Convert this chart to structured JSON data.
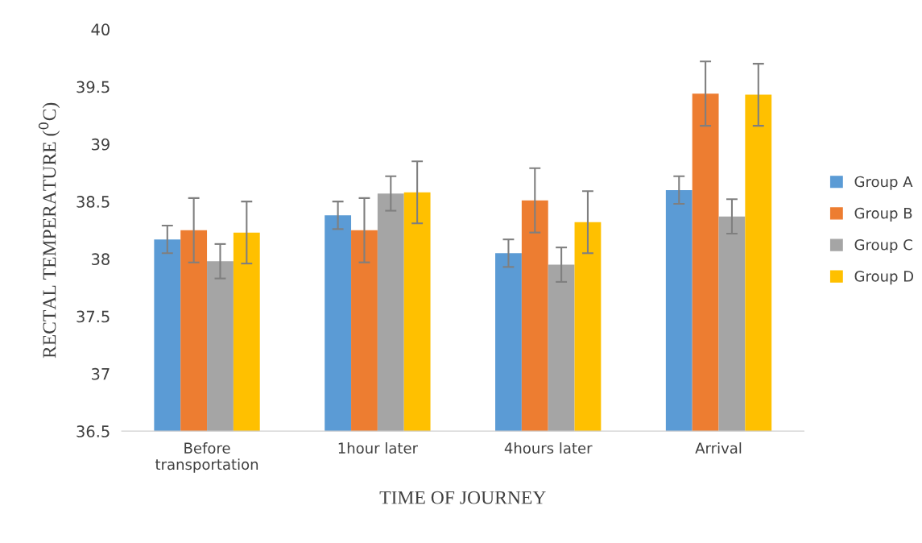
{
  "chart_data": {
    "type": "bar",
    "xlabel": "TIME OF JOURNEY",
    "ylabel": "RECTAL TEMPERATURE ($^{0}$C)",
    "categories": [
      "Before\ntransportation",
      "1hour later",
      "4hours later",
      "Arrival"
    ],
    "series": [
      {
        "name": "Group A",
        "color": "#5b9bd5",
        "values": [
          38.17,
          38.38,
          38.05,
          38.6
        ],
        "errors": [
          0.12,
          0.12,
          0.12,
          0.12
        ]
      },
      {
        "name": "Group B",
        "color": "#ed7d31",
        "values": [
          38.25,
          38.25,
          38.51,
          39.44
        ],
        "errors": [
          0.28,
          0.28,
          0.28,
          0.28
        ]
      },
      {
        "name": "Group C",
        "color": "#a5a5a5",
        "values": [
          37.98,
          38.57,
          37.95,
          38.37
        ],
        "errors": [
          0.15,
          0.15,
          0.15,
          0.15
        ]
      },
      {
        "name": "Group D",
        "color": "#ffc000",
        "values": [
          38.23,
          38.58,
          38.32,
          39.43
        ],
        "errors": [
          0.27,
          0.27,
          0.27,
          0.27
        ]
      }
    ],
    "ylim": [
      36.5,
      40
    ],
    "yticks": [
      36.5,
      37,
      37.5,
      38,
      38.5,
      39,
      39.5,
      40
    ],
    "grid": false,
    "legend": "right"
  }
}
